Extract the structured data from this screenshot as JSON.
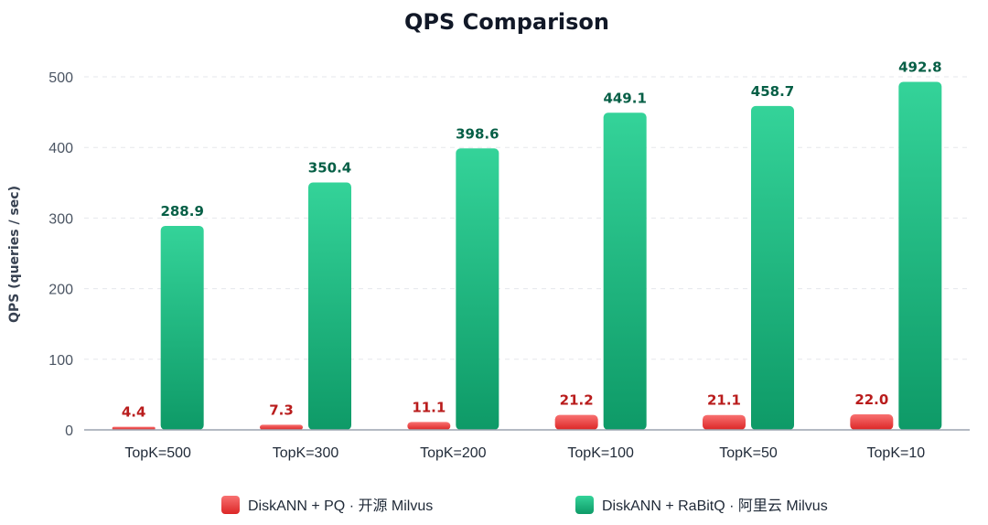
{
  "chart_data": {
    "type": "bar",
    "title": "QPS Comparison",
    "xlabel": "",
    "ylabel": "QPS (queries / sec)",
    "ylim": [
      0,
      500
    ],
    "yticks": [
      "0",
      "100",
      "200",
      "300",
      "400",
      "500"
    ],
    "grid": true,
    "legend_position": "bottom",
    "categories": [
      "TopK=500",
      "TopK=300",
      "TopK=200",
      "TopK=100",
      "TopK=50",
      "TopK=10"
    ],
    "series": [
      {
        "name": "DiskANN + PQ · 开源 Milvus",
        "color": "#ef4444",
        "label_color": "#b91c1c",
        "values": [
          4.4,
          7.3,
          11.1,
          21.2,
          21.1,
          22.0
        ],
        "labels": [
          "4.4",
          "7.3",
          "11.1",
          "21.2",
          "21.1",
          "22.0"
        ]
      },
      {
        "name": "DiskANN + RaBitQ · 阿里云 Milvus",
        "color": "#22c58b",
        "label_color": "#065f46",
        "values": [
          288.9,
          350.4,
          398.6,
          449.1,
          458.7,
          492.8
        ],
        "labels": [
          "288.9",
          "350.4",
          "398.6",
          "449.1",
          "458.7",
          "492.8"
        ]
      }
    ]
  }
}
